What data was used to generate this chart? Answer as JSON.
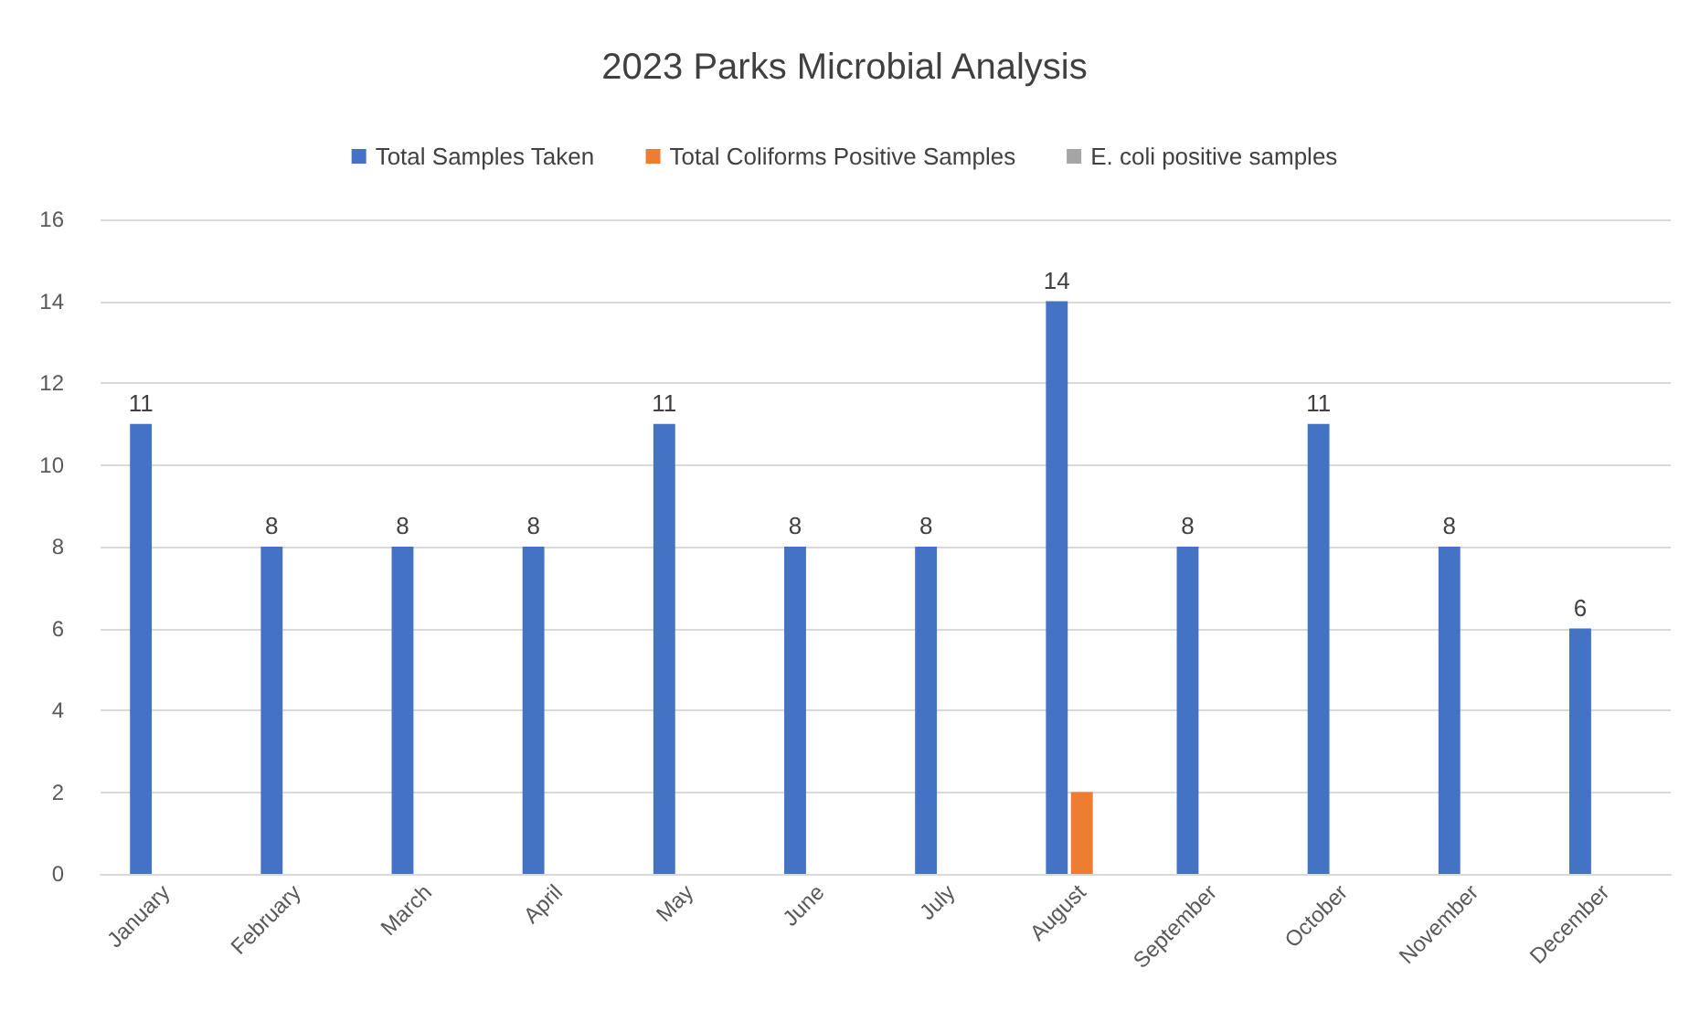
{
  "chart_data": {
    "type": "bar",
    "title": "2023 Parks Microbial Analysis",
    "categories": [
      "January",
      "February",
      "March",
      "April",
      "May",
      "June",
      "July",
      "August",
      "September",
      "October",
      "November",
      "December"
    ],
    "series": [
      {
        "name": "Total Samples Taken",
        "color": "#4472c4",
        "values": [
          11,
          8,
          8,
          8,
          11,
          8,
          8,
          14,
          8,
          11,
          8,
          6
        ],
        "value_labels": [
          "11",
          "8",
          "8",
          "8",
          "11",
          "8",
          "8",
          "14",
          "8",
          "11",
          "8",
          "6"
        ]
      },
      {
        "name": "Total Coliforms Positive Samples",
        "color": "#ed7d31",
        "values": [
          0,
          0,
          0,
          0,
          0,
          0,
          0,
          2,
          0,
          0,
          0,
          0
        ]
      },
      {
        "name": "E. coli positive samples",
        "color": "#a5a5a5",
        "values": [
          0,
          0,
          0,
          0,
          0,
          0,
          0,
          0,
          0,
          0,
          0,
          0
        ]
      }
    ],
    "ylim": [
      0,
      16
    ],
    "yticks": [
      0,
      2,
      4,
      6,
      8,
      10,
      12,
      14,
      16
    ],
    "grid": "y",
    "legend": "top"
  }
}
